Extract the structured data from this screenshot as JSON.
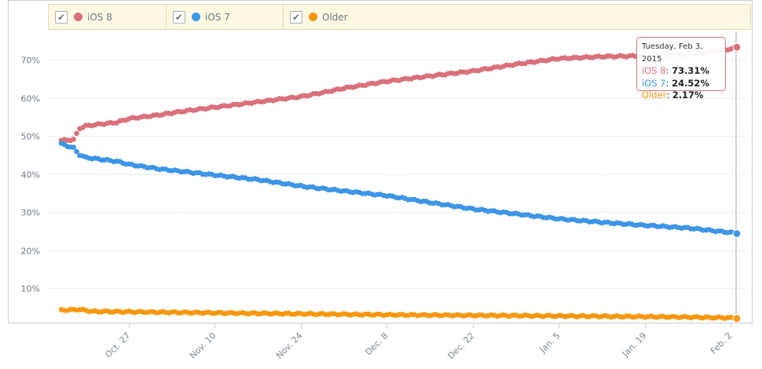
{
  "legend": {
    "items": [
      {
        "label": "iOS 8",
        "color": "#d9707a",
        "checked": true
      },
      {
        "label": "iOS 7",
        "color": "#3c95e6",
        "checked": true
      },
      {
        "label": "Older",
        "color": "#f5980f",
        "checked": true
      }
    ],
    "check_glyph": "✔"
  },
  "tooltip": {
    "date": "Tuesday, Feb 3, 2015",
    "rows": [
      {
        "label": "iOS 8",
        "value": "73.31%",
        "color": "#d9707a"
      },
      {
        "label": "iOS 7",
        "value": "24.52%",
        "color": "#3c95e6"
      },
      {
        "label": "Older",
        "value": "2.17%",
        "color": "#f5980f"
      }
    ]
  },
  "chart_data": {
    "type": "scatter",
    "xlabel": "",
    "ylabel": "",
    "ylim": [
      6,
      76
    ],
    "xlim": [
      "2014-10-16",
      "2015-02-03"
    ],
    "ytick_labels": [
      "10%",
      "20%",
      "30%",
      "40%",
      "50%",
      "60%",
      "70%"
    ],
    "yticks": [
      10,
      20,
      30,
      40,
      50,
      60,
      70
    ],
    "xtick_labels": [
      "Oct. 27",
      "Nov. 10",
      "Nov. 24",
      "Dec. 8",
      "Dec. 22",
      "Jan. 5",
      "Jan. 19",
      "Feb. 2"
    ],
    "xticks": [
      "2014-10-27",
      "2014-11-10",
      "2014-11-24",
      "2014-12-08",
      "2014-12-22",
      "2015-01-05",
      "2015-01-19",
      "2015-02-02"
    ],
    "grid": true,
    "legend_position": "top",
    "sample_interval_days": 0.5,
    "series": [
      {
        "name": "iOS 8",
        "color": "#d9707a",
        "knots": [
          [
            "2014-10-16",
            48.8
          ],
          [
            "2014-10-18",
            49
          ],
          [
            "2014-10-19",
            52
          ],
          [
            "2014-10-20",
            52.6
          ],
          [
            "2014-10-22",
            53
          ],
          [
            "2014-10-25",
            53.5
          ],
          [
            "2014-10-27",
            54.5
          ],
          [
            "2014-11-01",
            55.5
          ],
          [
            "2014-11-05",
            56.5
          ],
          [
            "2014-11-10",
            57.5
          ],
          [
            "2014-11-15",
            58.5
          ],
          [
            "2014-11-20",
            59.5
          ],
          [
            "2014-11-24",
            60.3
          ],
          [
            "2014-11-28",
            61.5
          ],
          [
            "2014-12-01",
            62.5
          ],
          [
            "2014-12-08",
            64.3
          ],
          [
            "2014-12-15",
            65.7
          ],
          [
            "2014-12-22",
            67
          ],
          [
            "2014-12-29",
            68.8
          ],
          [
            "2015-01-05",
            70.3
          ],
          [
            "2015-01-12",
            70.8
          ],
          [
            "2015-01-19",
            71
          ],
          [
            "2015-01-26",
            71.5
          ],
          [
            "2015-02-02",
            72.8
          ],
          [
            "2015-02-03",
            73.3
          ]
        ]
      },
      {
        "name": "iOS 7",
        "color": "#3c95e6",
        "knots": [
          [
            "2014-10-16",
            47.9
          ],
          [
            "2014-10-18",
            46.8
          ],
          [
            "2014-10-19",
            45
          ],
          [
            "2014-10-20",
            44.3
          ],
          [
            "2014-10-25",
            43.3
          ],
          [
            "2014-10-27",
            42.5
          ],
          [
            "2014-11-01",
            41.3
          ],
          [
            "2014-11-10",
            39.7
          ],
          [
            "2014-11-17",
            38.5
          ],
          [
            "2014-11-24",
            36.8
          ],
          [
            "2014-12-01",
            35.5
          ],
          [
            "2014-12-08",
            34.3
          ],
          [
            "2014-12-15",
            32.5
          ],
          [
            "2014-12-22",
            30.8
          ],
          [
            "2014-12-29",
            29.5
          ],
          [
            "2015-01-05",
            28.2
          ],
          [
            "2015-01-12",
            27.3
          ],
          [
            "2015-01-19",
            26.5
          ],
          [
            "2015-01-26",
            25.8
          ],
          [
            "2015-02-02",
            24.6
          ],
          [
            "2015-02-03",
            24.5
          ]
        ]
      },
      {
        "name": "Older",
        "color": "#f5980f",
        "knots": [
          [
            "2014-10-16",
            4.2
          ],
          [
            "2014-10-19",
            4.4
          ],
          [
            "2014-10-21",
            3.9
          ],
          [
            "2014-11-10",
            3.5
          ],
          [
            "2014-12-08",
            3.0
          ],
          [
            "2015-01-05",
            2.7
          ],
          [
            "2015-01-26",
            2.4
          ],
          [
            "2015-02-03",
            2.17
          ]
        ]
      }
    ]
  }
}
